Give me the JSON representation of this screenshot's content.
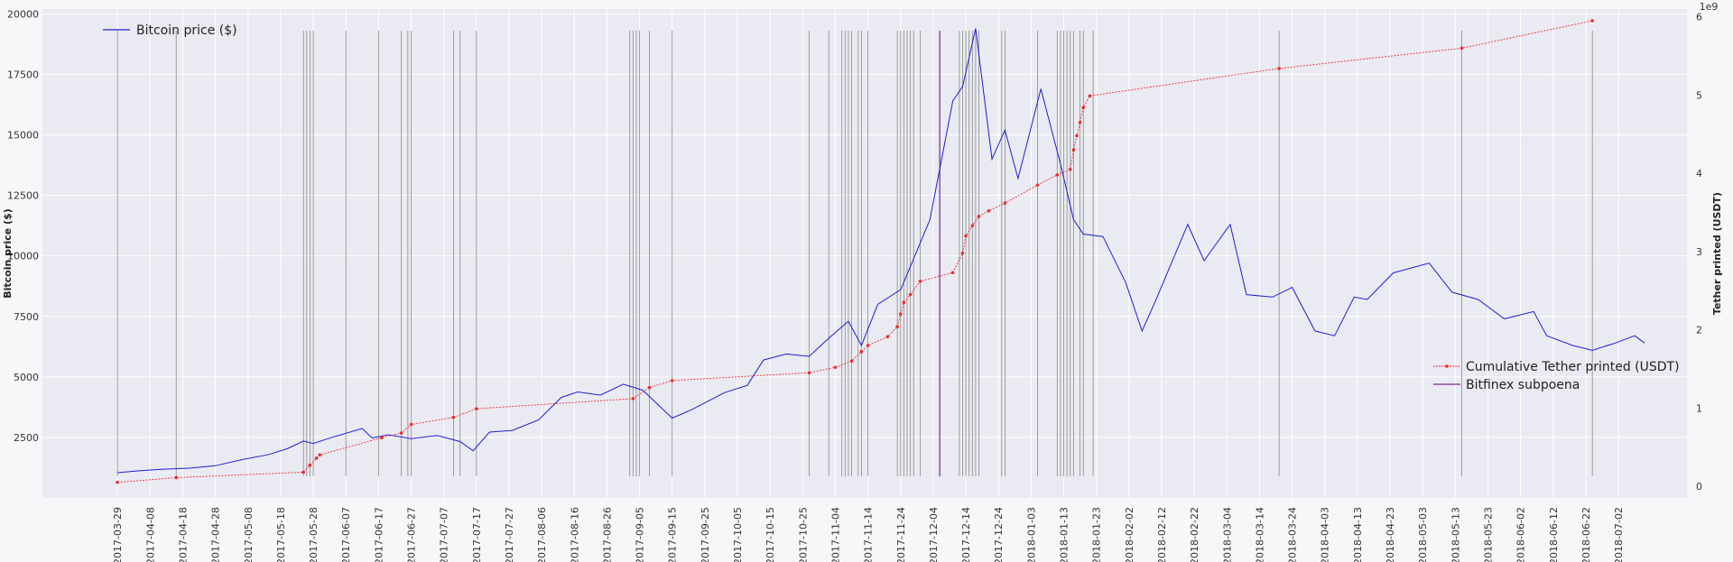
{
  "chart_data": {
    "type": "line",
    "ylabel": "Bitcoin price ($)",
    "y2label": "Tether printed (USDT)",
    "y2_exponent_label": "1e9",
    "ylim": [
      0,
      20200
    ],
    "y2lim": [
      -0.15,
      6.1
    ],
    "y_ticks": [
      2500,
      5000,
      7500,
      10000,
      12500,
      15000,
      17500,
      20000
    ],
    "y2_ticks": [
      0,
      1,
      2,
      3,
      4,
      5,
      6
    ],
    "x_ticks": [
      "2017-03-29",
      "2017-04-08",
      "2017-04-18",
      "2017-04-28",
      "2017-05-08",
      "2017-05-18",
      "2017-05-28",
      "2017-06-07",
      "2017-06-17",
      "2017-06-27",
      "2017-07-07",
      "2017-07-17",
      "2017-07-27",
      "2017-08-06",
      "2017-08-16",
      "2017-08-26",
      "2017-09-05",
      "2017-09-15",
      "2017-09-25",
      "2017-10-05",
      "2017-10-15",
      "2017-10-25",
      "2017-11-04",
      "2017-11-14",
      "2017-11-24",
      "2017-12-04",
      "2017-12-14",
      "2017-12-24",
      "2018-01-03",
      "2018-01-13",
      "2018-01-23",
      "2018-02-02",
      "2018-02-12",
      "2018-02-22",
      "2018-03-04",
      "2018-03-14",
      "2018-03-24",
      "2018-04-03",
      "2018-04-13",
      "2018-04-23",
      "2018-05-03",
      "2018-05-13",
      "2018-05-23",
      "2018-06-02",
      "2018-06-12",
      "2018-06-22",
      "2018-07-02"
    ],
    "xlim": [
      "2017-03-06",
      "2018-07-23"
    ],
    "grid": true,
    "legend": [
      {
        "label": "Bitcoin price ($)",
        "color": "#1f1fd1",
        "placement": "top-left"
      },
      {
        "label": "Cumulative Tether printed (USDT)",
        "color": "#e83030",
        "placement": "right"
      },
      {
        "label": "Bitfinex subpoena",
        "color": "#7a2a8a",
        "placement": "right"
      }
    ],
    "series": [
      {
        "name": "Bitcoin price ($)",
        "axis": "left",
        "color": "#1f1fd1",
        "x": [
          "2017-03-29",
          "2017-04-05",
          "2017-04-12",
          "2017-04-20",
          "2017-04-28",
          "2017-05-06",
          "2017-05-14",
          "2017-05-20",
          "2017-05-25",
          "2017-05-28",
          "2017-06-02",
          "2017-06-12",
          "2017-06-15",
          "2017-06-20",
          "2017-06-27",
          "2017-07-05",
          "2017-07-12",
          "2017-07-16",
          "2017-07-21",
          "2017-07-28",
          "2017-08-05",
          "2017-08-12",
          "2017-08-17",
          "2017-08-24",
          "2017-08-31",
          "2017-09-06",
          "2017-09-15",
          "2017-09-21",
          "2017-10-01",
          "2017-10-08",
          "2017-10-13",
          "2017-10-20",
          "2017-10-27",
          "2017-11-02",
          "2017-11-08",
          "2017-11-12",
          "2017-11-17",
          "2017-11-24",
          "2017-11-29",
          "2017-12-03",
          "2017-12-07",
          "2017-12-10",
          "2017-12-13",
          "2017-12-17",
          "2017-12-22",
          "2017-12-26",
          "2017-12-30",
          "2018-01-06",
          "2018-01-12",
          "2018-01-16",
          "2018-01-19",
          "2018-01-25",
          "2018-02-01",
          "2018-02-06",
          "2018-02-10",
          "2018-02-20",
          "2018-02-25",
          "2018-03-05",
          "2018-03-10",
          "2018-03-18",
          "2018-03-24",
          "2018-03-31",
          "2018-04-06",
          "2018-04-12",
          "2018-04-16",
          "2018-04-24",
          "2018-05-05",
          "2018-05-12",
          "2018-05-20",
          "2018-05-28",
          "2018-06-06",
          "2018-06-10",
          "2018-06-18",
          "2018-06-24",
          "2018-07-01",
          "2018-07-07",
          "2018-07-10"
        ],
        "values": [
          1045,
          1130,
          1190,
          1230,
          1330,
          1580,
          1780,
          2030,
          2350,
          2250,
          2470,
          2870,
          2480,
          2610,
          2450,
          2580,
          2330,
          1950,
          2720,
          2790,
          3220,
          4150,
          4380,
          4250,
          4700,
          4450,
          3300,
          3650,
          4350,
          4650,
          5700,
          5950,
          5850,
          6600,
          7300,
          6300,
          8000,
          8600,
          10200,
          11500,
          14300,
          16400,
          17000,
          19400,
          14000,
          15200,
          13200,
          16900,
          13800,
          11500,
          10900,
          10800,
          8900,
          6900,
          8100,
          11300,
          9800,
          11300,
          8400,
          8300,
          8700,
          6900,
          6700,
          8300,
          8200,
          9300,
          9700,
          8500,
          8200,
          7400,
          7700,
          6700,
          6300,
          6100,
          6400,
          6700,
          6400
        ]
      },
      {
        "name": "Cumulative Tether printed (USDT)",
        "axis": "right",
        "color": "#e83030",
        "x": [
          "2017-03-29",
          "2017-04-16",
          "2017-05-25",
          "2017-05-27",
          "2017-05-29",
          "2017-05-30",
          "2017-06-18",
          "2017-06-24",
          "2017-06-27",
          "2017-07-10",
          "2017-07-17",
          "2017-09-03",
          "2017-09-08",
          "2017-09-15",
          "2017-10-27",
          "2017-11-04",
          "2017-11-09",
          "2017-11-12",
          "2017-11-14",
          "2017-11-20",
          "2017-11-23",
          "2017-11-24",
          "2017-11-25",
          "2017-11-27",
          "2017-11-30",
          "2017-12-10",
          "2017-12-13",
          "2017-12-14",
          "2017-12-16",
          "2017-12-18",
          "2017-12-21",
          "2017-12-26",
          "2018-01-05",
          "2018-01-11",
          "2018-01-15",
          "2018-01-16",
          "2018-01-17",
          "2018-01-18",
          "2018-01-19",
          "2018-01-21",
          "2018-03-20",
          "2018-05-15",
          "2018-06-24"
        ],
        "values": [
          0.05,
          0.11,
          0.18,
          0.27,
          0.36,
          0.4,
          0.62,
          0.68,
          0.79,
          0.88,
          0.99,
          1.12,
          1.26,
          1.35,
          1.45,
          1.52,
          1.6,
          1.72,
          1.8,
          1.91,
          2.04,
          2.2,
          2.35,
          2.45,
          2.62,
          2.73,
          2.98,
          3.2,
          3.33,
          3.45,
          3.52,
          3.62,
          3.85,
          3.98,
          4.05,
          4.3,
          4.48,
          4.65,
          4.84,
          4.99,
          5.34,
          5.6,
          5.95
        ]
      }
    ],
    "event_lines": [
      "2017-03-29",
      "2017-04-16",
      "2017-05-25",
      "2017-05-26",
      "2017-05-27",
      "2017-05-28",
      "2017-06-07",
      "2017-06-17",
      "2017-06-24",
      "2017-06-26",
      "2017-06-27",
      "2017-07-10",
      "2017-07-12",
      "2017-07-17",
      "2017-09-02",
      "2017-09-03",
      "2017-09-04",
      "2017-09-05",
      "2017-09-08",
      "2017-09-15",
      "2017-10-27",
      "2017-11-02",
      "2017-11-06",
      "2017-11-07",
      "2017-11-08",
      "2017-11-09",
      "2017-11-11",
      "2017-11-12",
      "2017-11-14",
      "2017-11-23",
      "2017-11-24",
      "2017-11-25",
      "2017-11-26",
      "2017-11-27",
      "2017-11-28",
      "2017-11-30",
      "2017-12-06",
      "2017-12-12",
      "2017-12-13",
      "2017-12-14",
      "2017-12-15",
      "2017-12-16",
      "2017-12-17",
      "2017-12-18",
      "2017-12-25",
      "2017-12-26",
      "2018-01-05",
      "2018-01-11",
      "2018-01-12",
      "2018-01-13",
      "2018-01-14",
      "2018-01-15",
      "2018-01-16",
      "2018-01-18",
      "2018-01-19",
      "2018-01-22",
      "2018-03-20",
      "2018-05-15",
      "2018-06-24"
    ],
    "subpoena_date": "2017-12-06",
    "colors": {
      "plot_background": "#eaeaf2",
      "grid": "#ffffff",
      "event_line": "#8a8a8a"
    }
  }
}
